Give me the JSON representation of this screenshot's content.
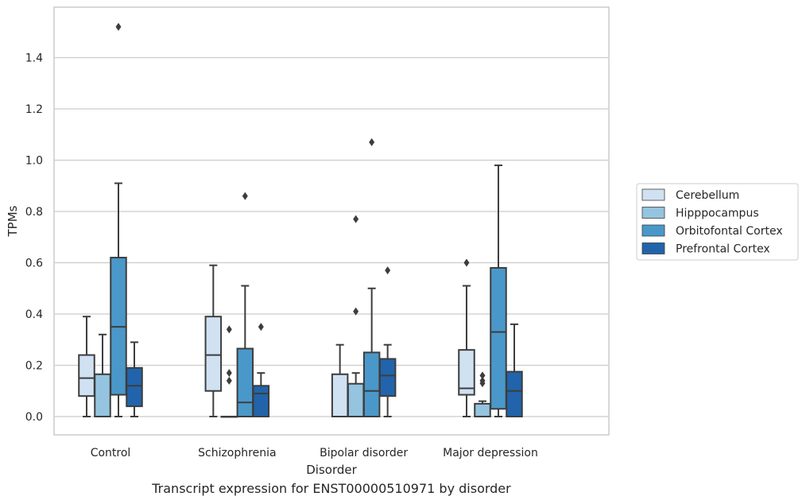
{
  "caption": "Transcript expression for ENST00000510971 by disorder",
  "chart_data": {
    "type": "boxplot",
    "xlabel": "Disorder",
    "ylabel": "TPMs",
    "ylim": [
      -0.07,
      1.6
    ],
    "yticks": [
      0.0,
      0.2,
      0.4,
      0.6,
      0.8,
      1.0,
      1.2,
      1.4
    ],
    "ytick_labels": [
      "0.0",
      "0.2",
      "0.4",
      "0.6",
      "0.8",
      "1.0",
      "1.2",
      "1.4"
    ],
    "grid": "horizontal",
    "legend_placement": "right",
    "categories": [
      "Control",
      "Schizophrenia",
      "Bipolar disorder",
      "Major depression"
    ],
    "series": [
      {
        "name": "Cerebellum",
        "color": "#d0e1f2",
        "boxes": [
          {
            "whislo": 0.0,
            "q1": 0.08,
            "med": 0.15,
            "q3": 0.24,
            "whishi": 0.39,
            "fliers": []
          },
          {
            "whislo": 0.0,
            "q1": 0.1,
            "med": 0.24,
            "q3": 0.39,
            "whishi": 0.59,
            "fliers": []
          },
          {
            "whislo": 0.0,
            "q1": 0.0,
            "med": 0.0,
            "q3": 0.165,
            "whishi": 0.28,
            "fliers": []
          },
          {
            "whislo": 0.0,
            "q1": 0.085,
            "med": 0.11,
            "q3": 0.26,
            "whishi": 0.51,
            "fliers": [
              0.6
            ]
          }
        ]
      },
      {
        "name": "Hipppocampus",
        "color": "#94c4df",
        "boxes": [
          {
            "whislo": 0.0,
            "q1": 0.0,
            "med": 0.0,
            "q3": 0.165,
            "whishi": 0.32,
            "fliers": []
          },
          {
            "whislo": 0.0,
            "q1": 0.0,
            "med": 0.0,
            "q3": 0.0,
            "whishi": 0.0,
            "fliers": [
              0.34,
              0.17,
              0.14
            ]
          },
          {
            "whislo": 0.0,
            "q1": 0.0,
            "med": 0.0,
            "q3": 0.128,
            "whishi": 0.17,
            "fliers": [
              0.77,
              0.41
            ]
          },
          {
            "whislo": 0.0,
            "q1": 0.0,
            "med": 0.0,
            "q3": 0.05,
            "whishi": 0.06,
            "fliers": [
              0.16,
              0.14,
              0.13
            ]
          }
        ]
      },
      {
        "name": "Orbitofontal Cortex",
        "color": "#4a98c9",
        "boxes": [
          {
            "whislo": 0.0,
            "q1": 0.085,
            "med": 0.35,
            "q3": 0.62,
            "whishi": 0.91,
            "fliers": [
              1.52
            ]
          },
          {
            "whislo": 0.0,
            "q1": 0.0,
            "med": 0.055,
            "q3": 0.265,
            "whishi": 0.51,
            "fliers": [
              0.86
            ]
          },
          {
            "whislo": 0.0,
            "q1": 0.0,
            "med": 0.1,
            "q3": 0.25,
            "whishi": 0.5,
            "fliers": [
              1.07
            ]
          },
          {
            "whislo": 0.0,
            "q1": 0.03,
            "med": 0.33,
            "q3": 0.58,
            "whishi": 0.98,
            "fliers": []
          }
        ]
      },
      {
        "name": "Prefrontal Cortex",
        "color": "#2164ab",
        "boxes": [
          {
            "whislo": 0.0,
            "q1": 0.04,
            "med": 0.12,
            "q3": 0.19,
            "whishi": 0.29,
            "fliers": []
          },
          {
            "whislo": 0.0,
            "q1": 0.0,
            "med": 0.09,
            "q3": 0.12,
            "whishi": 0.17,
            "fliers": [
              0.35
            ]
          },
          {
            "whislo": 0.0,
            "q1": 0.08,
            "med": 0.16,
            "q3": 0.225,
            "whishi": 0.28,
            "fliers": [
              0.57
            ]
          },
          {
            "whislo": 0.0,
            "q1": 0.0,
            "med": 0.1,
            "q3": 0.175,
            "whishi": 0.36,
            "fliers": []
          }
        ]
      }
    ]
  }
}
